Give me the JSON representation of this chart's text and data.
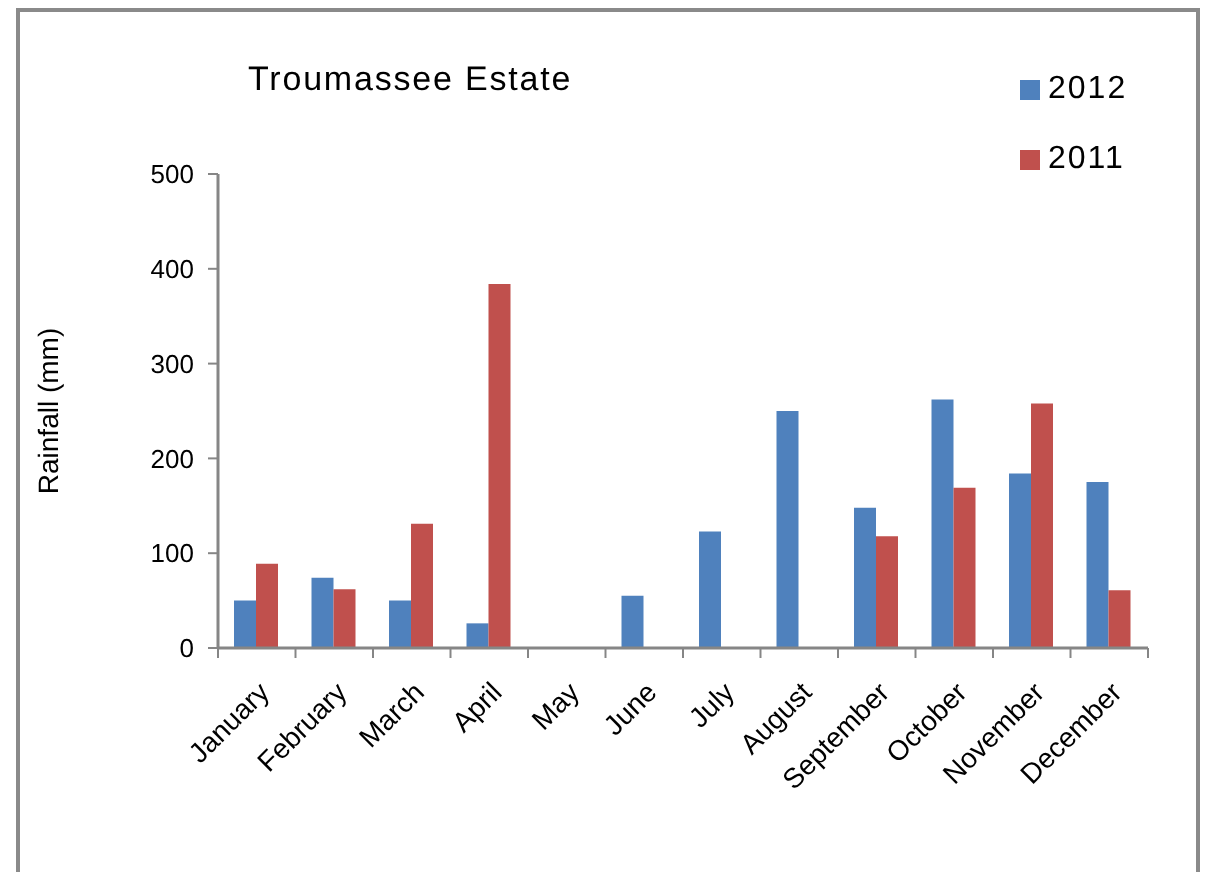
{
  "chart_data": {
    "type": "bar",
    "title": "Troumassee Estate",
    "ylabel": "Rainfall (mm)",
    "categories": [
      "January",
      "February",
      "March",
      "April",
      "May",
      "June",
      "July",
      "August",
      "September",
      "October",
      "November",
      "December"
    ],
    "series": [
      {
        "name": "2012",
        "color": "#4f81bd",
        "values": [
          50,
          74,
          50,
          26,
          null,
          55,
          123,
          250,
          148,
          262,
          184,
          175
        ]
      },
      {
        "name": "2011",
        "color": "#c0504d",
        "values": [
          89,
          62,
          131,
          384,
          null,
          null,
          null,
          null,
          118,
          169,
          258,
          61
        ]
      }
    ],
    "ylim": [
      0,
      500
    ],
    "yticks": [
      0,
      100,
      200,
      300,
      400,
      500
    ],
    "legend": "top right"
  }
}
